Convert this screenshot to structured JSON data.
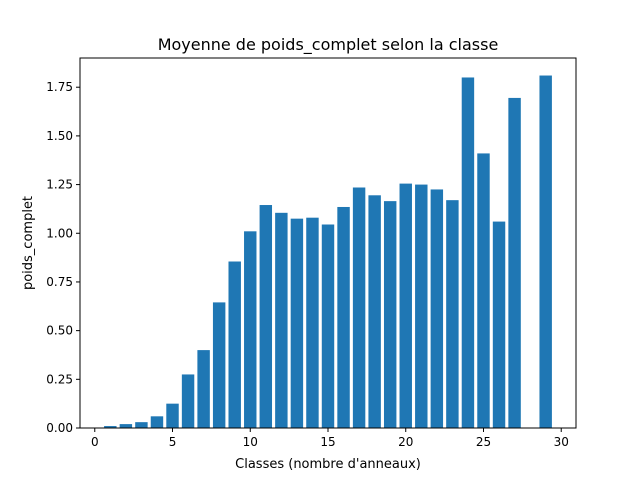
{
  "chart_data": {
    "type": "bar",
    "title": "Moyenne de poids_complet selon la classe",
    "xlabel": "Classes (nombre d'anneaux)",
    "ylabel": "poids_complet",
    "xlim": [
      -0.95,
      30.95
    ],
    "ylim": [
      0,
      1.9
    ],
    "xticks": [
      "0",
      "5",
      "10",
      "15",
      "20",
      "25",
      "30"
    ],
    "yticks": [
      "0.00",
      "0.25",
      "0.50",
      "0.75",
      "1.00",
      "1.25",
      "1.50",
      "1.75"
    ],
    "grid": false,
    "legend": "none",
    "color": "#1f77b4",
    "x": [
      1,
      2,
      3,
      4,
      5,
      6,
      7,
      8,
      9,
      10,
      11,
      12,
      13,
      14,
      15,
      16,
      17,
      18,
      19,
      20,
      21,
      22,
      23,
      24,
      25,
      26,
      27,
      29
    ],
    "values": [
      0.01,
      0.02,
      0.03,
      0.06,
      0.125,
      0.275,
      0.4,
      0.645,
      0.855,
      1.01,
      1.145,
      1.105,
      1.075,
      1.08,
      1.045,
      1.135,
      1.235,
      1.195,
      1.165,
      1.255,
      1.25,
      1.225,
      1.17,
      1.8,
      1.41,
      1.06,
      1.695,
      1.81
    ]
  }
}
